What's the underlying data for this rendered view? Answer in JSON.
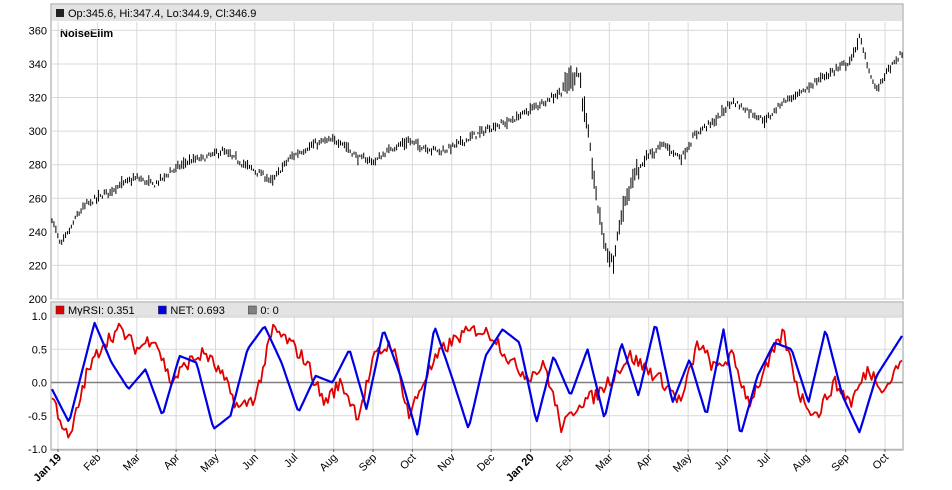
{
  "colors": {
    "price": "#000000",
    "rsi": "#e00000",
    "net": "#0000e6",
    "zero": "#808080",
    "grid": "#d9d9d9",
    "legend_bg": "#e3e3e3"
  },
  "chart_data": [
    {
      "type": "line",
      "panel": "price",
      "series_label": "NoiseElim",
      "legend": "Op:345.6, Hi:347.4, Lo:344.9, Cl:346.9",
      "ylim": [
        200,
        365
      ],
      "yticks": [
        200,
        220,
        240,
        260,
        280,
        300,
        320,
        340,
        360
      ],
      "grid": true,
      "close_series": {
        "t": [
          0,
          0.01,
          0.02,
          0.03,
          0.04,
          0.06,
          0.08,
          0.1,
          0.12,
          0.14,
          0.16,
          0.18,
          0.2,
          0.22,
          0.24,
          0.26,
          0.27,
          0.28,
          0.3,
          0.32,
          0.34,
          0.36,
          0.38,
          0.4,
          0.42,
          0.44,
          0.46,
          0.48,
          0.5,
          0.52,
          0.54,
          0.56,
          0.58,
          0.6,
          0.61,
          0.62,
          0.63,
          0.64,
          0.65,
          0.66,
          0.67,
          0.68,
          0.7,
          0.72,
          0.74,
          0.76,
          0.78,
          0.8,
          0.82,
          0.84,
          0.86,
          0.88,
          0.9,
          0.92,
          0.94,
          0.95,
          0.96,
          0.97,
          0.98,
          1.0
        ],
        "v": [
          248,
          232,
          240,
          250,
          256,
          262,
          268,
          272,
          268,
          276,
          282,
          284,
          288,
          282,
          276,
          270,
          278,
          284,
          290,
          294,
          294,
          284,
          282,
          290,
          294,
          290,
          288,
          293,
          298,
          303,
          306,
          312,
          318,
          324,
          332,
          334,
          300,
          262,
          234,
          220,
          250,
          268,
          285,
          292,
          284,
          300,
          306,
          318,
          312,
          306,
          318,
          322,
          330,
          336,
          342,
          356,
          338,
          324,
          334,
          346
        ]
      }
    },
    {
      "type": "line",
      "panel": "indicator",
      "ylim": [
        -1.0,
        1.0
      ],
      "yticks": [
        -1.0,
        -0.5,
        0.0,
        0.5,
        1.0
      ],
      "ytick_labels": [
        "-1.0",
        "-0.5",
        "0.0",
        "0.5",
        "1.0"
      ],
      "grid": true,
      "legend": [
        {
          "label": "MyRSI: 0.351",
          "color": "#e00000"
        },
        {
          "label": "NET: 0.693",
          "color": "#0000e6"
        },
        {
          "label": "0: 0",
          "color": "#808080"
        }
      ],
      "x_labels": [
        "Jan 19",
        "Feb",
        "Mar",
        "Apr",
        "May",
        "Jun",
        "Jul",
        "Aug",
        "Sep",
        "Oct",
        "Nov",
        "Dec",
        "Jan 20",
        "Feb",
        "Mar",
        "Apr",
        "May",
        "Jun",
        "Jul",
        "Aug",
        "Sep",
        "Oct"
      ],
      "x_labels_bold": [
        "Jan 19",
        "Jan 20"
      ],
      "series": [
        {
          "name": "NET",
          "t": [
            0,
            0.02,
            0.05,
            0.07,
            0.09,
            0.11,
            0.13,
            0.15,
            0.17,
            0.19,
            0.21,
            0.23,
            0.25,
            0.27,
            0.29,
            0.31,
            0.33,
            0.35,
            0.37,
            0.39,
            0.41,
            0.43,
            0.45,
            0.47,
            0.49,
            0.51,
            0.53,
            0.55,
            0.57,
            0.59,
            0.61,
            0.63,
            0.65,
            0.67,
            0.69,
            0.71,
            0.73,
            0.75,
            0.77,
            0.79,
            0.81,
            0.83,
            0.85,
            0.87,
            0.89,
            0.91,
            0.93,
            0.95,
            0.97,
            1.0
          ],
          "values": [
            -0.1,
            -0.6,
            0.9,
            0.3,
            -0.1,
            0.2,
            -0.5,
            0.4,
            0.3,
            -0.7,
            -0.5,
            0.5,
            0.85,
            0.3,
            -0.45,
            0.1,
            0.0,
            0.5,
            -0.4,
            0.8,
            0.1,
            -0.8,
            0.85,
            0.1,
            -0.7,
            0.4,
            0.8,
            0.6,
            -0.6,
            0.4,
            -0.2,
            0.5,
            -0.55,
            0.6,
            -0.2,
            0.9,
            -0.3,
            0.35,
            -0.5,
            0.8,
            -0.8,
            0.1,
            0.6,
            0.5,
            -0.3,
            0.8,
            -0.2,
            -0.75,
            0.1,
            0.7
          ]
        },
        {
          "name": "MyRSI",
          "t": [
            0,
            0.02,
            0.04,
            0.06,
            0.08,
            0.1,
            0.12,
            0.14,
            0.16,
            0.18,
            0.2,
            0.22,
            0.24,
            0.26,
            0.28,
            0.3,
            0.32,
            0.34,
            0.36,
            0.38,
            0.4,
            0.42,
            0.44,
            0.46,
            0.48,
            0.5,
            0.52,
            0.54,
            0.56,
            0.58,
            0.6,
            0.62,
            0.64,
            0.66,
            0.68,
            0.7,
            0.72,
            0.74,
            0.76,
            0.78,
            0.8,
            0.82,
            0.84,
            0.86,
            0.88,
            0.9,
            0.92,
            0.94,
            0.96,
            0.98,
            1.0
          ],
          "values": [
            -0.2,
            -0.9,
            0.1,
            0.6,
            0.8,
            0.5,
            0.7,
            0.0,
            0.3,
            0.45,
            0.1,
            -0.4,
            -0.2,
            0.8,
            0.6,
            0.3,
            -0.3,
            0.0,
            -0.5,
            0.4,
            0.6,
            -0.5,
            0.1,
            0.5,
            0.7,
            0.8,
            0.7,
            0.3,
            0.1,
            0.25,
            -0.7,
            -0.3,
            -0.2,
            0.1,
            0.4,
            0.2,
            0.0,
            -0.3,
            0.6,
            0.2,
            0.4,
            -0.3,
            0.2,
            0.75,
            -0.2,
            -0.5,
            0.0,
            -0.3,
            0.2,
            -0.1,
            0.35
          ]
        },
        {
          "name": "0",
          "t": [
            0,
            1
          ],
          "values": [
            0,
            0
          ]
        }
      ]
    }
  ]
}
